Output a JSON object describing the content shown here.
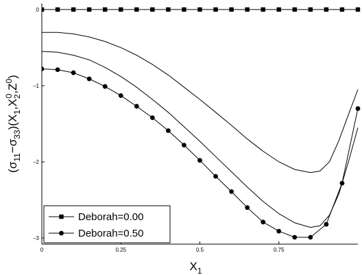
{
  "chart_data": {
    "type": "line",
    "title": "",
    "xlabel": "X1",
    "ylabel": "(σ11−σ33)(X1,X2^0,Z^0)",
    "xlim": [
      0,
      1
    ],
    "ylim": [
      -3.08,
      0.08
    ],
    "x_ticks": [
      0,
      0.25,
      0.5,
      0.75
    ],
    "x_tick_labels": [
      "0",
      "0.25",
      "0.5",
      "0.75"
    ],
    "y_ticks": [
      0,
      -1,
      -2,
      -3
    ],
    "y_tick_labels": [
      "0",
      "−1",
      "−2",
      "−3"
    ],
    "grid": false,
    "legend_position": "bottom-left",
    "series": [
      {
        "name": "Deborah=0.00",
        "marker": "square",
        "x": [
          0,
          0.05,
          0.1,
          0.15,
          0.2,
          0.25,
          0.3,
          0.35,
          0.4,
          0.45,
          0.5,
          0.55,
          0.6,
          0.65,
          0.7,
          0.75,
          0.8,
          0.85,
          0.9,
          0.95,
          1.0
        ],
        "y": [
          0,
          0,
          0,
          0,
          0,
          0,
          0,
          0,
          0,
          0,
          0,
          0,
          0,
          0,
          0,
          0,
          0,
          0,
          0,
          0,
          0
        ]
      },
      {
        "name": "",
        "marker": "none",
        "x": [
          0,
          0.05,
          0.1,
          0.15,
          0.2,
          0.25,
          0.3,
          0.35,
          0.4,
          0.45,
          0.5,
          0.55,
          0.6,
          0.65,
          0.7,
          0.75,
          0.8,
          0.85,
          0.88,
          0.91,
          0.94,
          0.97,
          1.0
        ],
        "y": [
          -0.3,
          -0.3,
          -0.32,
          -0.36,
          -0.42,
          -0.5,
          -0.6,
          -0.72,
          -0.86,
          -1.02,
          -1.18,
          -1.35,
          -1.52,
          -1.7,
          -1.86,
          -2.0,
          -2.1,
          -2.14,
          -2.12,
          -2.0,
          -1.72,
          -1.38,
          -1.05
        ]
      },
      {
        "name": "",
        "marker": "none",
        "x": [
          0,
          0.05,
          0.1,
          0.15,
          0.2,
          0.25,
          0.3,
          0.35,
          0.4,
          0.45,
          0.5,
          0.55,
          0.6,
          0.65,
          0.7,
          0.75,
          0.8,
          0.85,
          0.88,
          0.91,
          0.94,
          0.97,
          1.0
        ],
        "y": [
          -0.55,
          -0.56,
          -0.6,
          -0.66,
          -0.76,
          -0.88,
          -1.02,
          -1.18,
          -1.35,
          -1.54,
          -1.73,
          -1.93,
          -2.13,
          -2.33,
          -2.52,
          -2.68,
          -2.8,
          -2.86,
          -2.84,
          -2.7,
          -2.42,
          -2.0,
          -1.55
        ]
      },
      {
        "name": "Deborah=0.50",
        "marker": "circle",
        "x": [
          0,
          0.05,
          0.1,
          0.15,
          0.2,
          0.25,
          0.3,
          0.35,
          0.4,
          0.45,
          0.5,
          0.55,
          0.6,
          0.65,
          0.7,
          0.75,
          0.8,
          0.85,
          0.9,
          0.95,
          1.0
        ],
        "y": [
          -0.78,
          -0.79,
          -0.83,
          -0.91,
          -1.01,
          -1.13,
          -1.27,
          -1.42,
          -1.59,
          -1.78,
          -1.98,
          -2.19,
          -2.39,
          -2.6,
          -2.79,
          -2.91,
          -2.99,
          -2.99,
          -2.82,
          -2.28,
          -1.3
        ]
      }
    ]
  }
}
